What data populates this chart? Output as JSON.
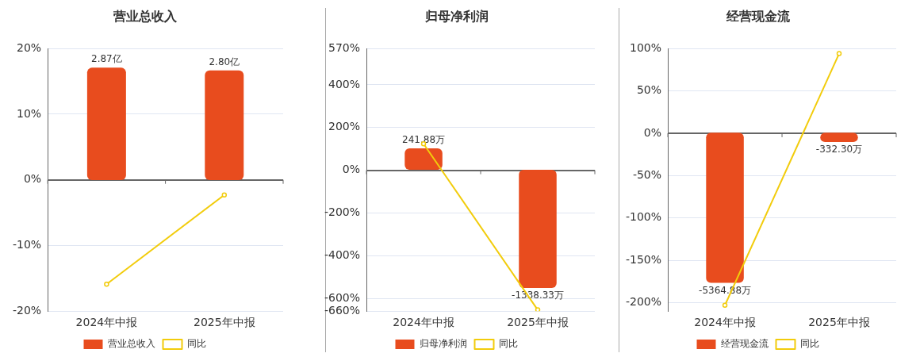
{
  "chart_data": [
    {
      "type": "bar",
      "title": "营业总收入",
      "categories": [
        "2024年中报",
        "2025年中报"
      ],
      "series": [
        {
          "name": "营业总收入",
          "axis": "y2",
          "color": "#e84c1e",
          "values": [
            2.87,
            2.8
          ],
          "value_labels": [
            "2.87亿",
            "2.80亿"
          ]
        },
        {
          "name": "同比",
          "type": "line",
          "color": "#f2cc0c",
          "values": [
            -15.9,
            -2.3
          ],
          "marker": "circle"
        }
      ],
      "ylim": [
        -20,
        20
      ],
      "yticks": [
        {
          "value": -20,
          "label": "-20%"
        },
        {
          "value": -10,
          "label": "-10%"
        },
        {
          "value": 0,
          "label": "0%"
        },
        {
          "value": 10,
          "label": "10%"
        },
        {
          "value": 20,
          "label": "20%"
        }
      ],
      "y2lim": [
        -3.35,
        3.36
      ],
      "grid": "y",
      "legend": "bottom"
    },
    {
      "type": "bar",
      "title": "归母净利润",
      "categories": [
        "2024年中报",
        "2025年中报"
      ],
      "series": [
        {
          "name": "归母净利润",
          "axis": "y2",
          "color": "#e84c1e",
          "values": [
            241.88,
            -1338.33
          ],
          "value_labels": [
            "241.88万",
            "-1338.33万"
          ]
        },
        {
          "name": "同比",
          "type": "line",
          "color": "#f2cc0c",
          "values": [
            124,
            -654
          ],
          "marker": "circle"
        }
      ],
      "ylim": [
        -660,
        570
      ],
      "yticks": [
        {
          "value": -660,
          "label": "-660%"
        },
        {
          "value": -600,
          "label": "-600%"
        },
        {
          "value": -400,
          "label": "-400%"
        },
        {
          "value": -200,
          "label": "-200%"
        },
        {
          "value": 0,
          "label": "0%"
        },
        {
          "value": 200,
          "label": "200%"
        },
        {
          "value": 400,
          "label": "400%"
        },
        {
          "value": 570,
          "label": "570%"
        }
      ],
      "y2lim": [
        -1600,
        1370
      ],
      "grid": "y",
      "legend": "bottom"
    },
    {
      "type": "bar",
      "title": "经营现金流",
      "categories": [
        "2024年中报",
        "2025年中报"
      ],
      "series": [
        {
          "name": "经营现金流",
          "axis": "y2",
          "color": "#e84c1e",
          "values": [
            -5364.88,
            -332.3
          ],
          "value_labels": [
            "-5364.88万",
            "-332.30万"
          ]
        },
        {
          "name": "同比",
          "type": "line",
          "color": "#f2cc0c",
          "values": [
            -203,
            94
          ],
          "marker": "circle"
        }
      ],
      "ylim": [
        -210,
        100
      ],
      "yticks": [
        {
          "value": -200,
          "label": "-200%"
        },
        {
          "value": -150,
          "label": "-150%"
        },
        {
          "value": -100,
          "label": "-100%"
        },
        {
          "value": -50,
          "label": "-50%"
        },
        {
          "value": 0,
          "label": "0%"
        },
        {
          "value": 50,
          "label": "50%"
        },
        {
          "value": 100,
          "label": "100%"
        }
      ],
      "y2lim": [
        -6380,
        3010
      ],
      "grid": "y",
      "legend": "bottom"
    }
  ]
}
